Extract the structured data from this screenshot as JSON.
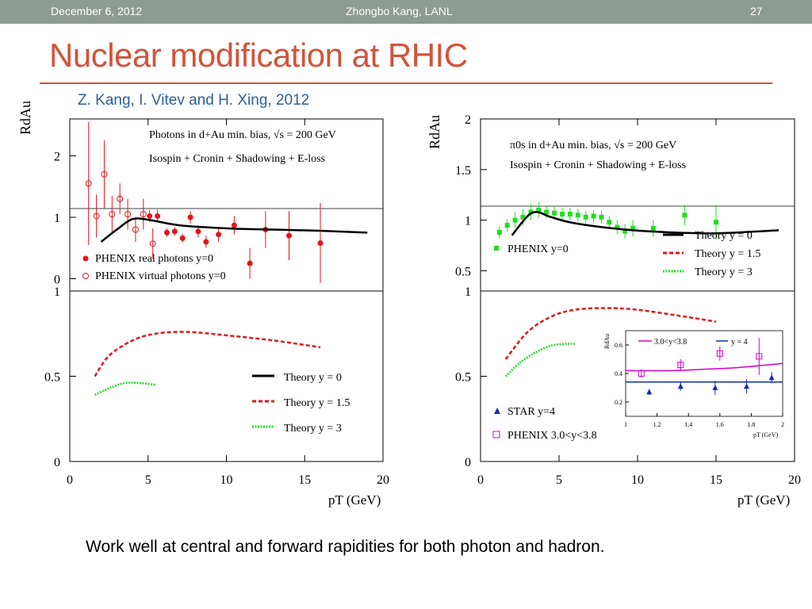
{
  "header": {
    "date": "December 6, 2012",
    "author": "Zhongbo Kang, LANL",
    "page": "27"
  },
  "slide": {
    "title": "Nuclear modification at RHIC",
    "citation": "Z. Kang, I. Vitev and H. Xing, 2012",
    "caption": "Work well at central and forward rapidities for both photon and hadron."
  },
  "colors": {
    "title": "#d0543a",
    "citation": "#2f5e93",
    "red": "#e0161b",
    "green": "#22dd22",
    "magenta": "#d000c8",
    "blue": "#0f2fb0"
  },
  "chart_data": [
    {
      "type": "scatter",
      "ylabel": "RdAu",
      "xlabel": "pT (GeV)",
      "xlim": [
        0,
        20
      ],
      "ylim_top": [
        -0.2,
        2.6
      ],
      "ylim_bottom": [
        0,
        1
      ],
      "x_ticks": [
        "0",
        "5",
        "10",
        "15",
        "20"
      ],
      "y_ticks_top": [
        "0",
        "1",
        "2"
      ],
      "y_ticks_bottom": [
        "0",
        "0.5",
        "1"
      ],
      "legend_top_title": [
        "Photons in d+Au min. bias, √s = 200 GeV",
        "Isospin + Cronin + Shadowing + E-loss"
      ],
      "legend_bottom": [
        "Theory y = 0",
        "Theory y = 1.5",
        "Theory y = 3"
      ],
      "series": [
        {
          "name": "PHENIX real photons y=0",
          "style": "filled",
          "points": [
            [
              5.1,
              1.02,
              0.1
            ],
            [
              5.6,
              1.02,
              0.1
            ],
            [
              6.2,
              0.75,
              0.07
            ],
            [
              6.7,
              0.77,
              0.07
            ],
            [
              7.2,
              0.66,
              0.07
            ],
            [
              7.7,
              1.0,
              0.1
            ],
            [
              8.2,
              0.77,
              0.1
            ],
            [
              8.7,
              0.6,
              0.1
            ],
            [
              9.5,
              0.72,
              0.12
            ],
            [
              10.5,
              0.87,
              0.15
            ],
            [
              11.5,
              0.25,
              0.25
            ],
            [
              12.5,
              0.8,
              0.3
            ],
            [
              14,
              0.7,
              0.4
            ],
            [
              16,
              0.58,
              0.65
            ]
          ]
        },
        {
          "name": "PHENIX virtual photons y=0",
          "style": "open",
          "points": [
            [
              1.2,
              1.55,
              1.0
            ],
            [
              1.7,
              1.02,
              0.35
            ],
            [
              2.2,
              1.7,
              0.55
            ],
            [
              2.7,
              1.05,
              0.3
            ],
            [
              3.2,
              1.3,
              0.25
            ],
            [
              3.7,
              1.05,
              0.25
            ],
            [
              4.2,
              0.8,
              0.2
            ],
            [
              4.7,
              1.05,
              0.25
            ],
            [
              5.3,
              0.57,
              0.25
            ]
          ]
        },
        {
          "name": "Theory y = 0",
          "curve": [
            [
              2,
              0.6
            ],
            [
              3,
              0.8
            ],
            [
              4,
              0.97
            ],
            [
              5,
              0.96
            ],
            [
              7,
              0.87
            ],
            [
              10,
              0.82
            ],
            [
              13,
              0.8
            ],
            [
              16,
              0.78
            ],
            [
              19,
              0.75
            ]
          ]
        },
        {
          "name": "Theory y = 1.5",
          "curve": [
            [
              1.6,
              0.5
            ],
            [
              2.5,
              0.62
            ],
            [
              4,
              0.71
            ],
            [
              5.5,
              0.75
            ],
            [
              7.5,
              0.76
            ],
            [
              10,
              0.74
            ],
            [
              13,
              0.71
            ],
            [
              16,
              0.67
            ]
          ]
        },
        {
          "name": "Theory y = 3",
          "curve": [
            [
              1.6,
              0.39
            ],
            [
              2.5,
              0.43
            ],
            [
              3.5,
              0.46
            ],
            [
              4.5,
              0.46
            ],
            [
              5.5,
              0.45
            ]
          ]
        }
      ]
    },
    {
      "type": "scatter",
      "ylabel": "RdAu",
      "xlabel": "pT (GeV)",
      "xlim": [
        0,
        20
      ],
      "ylim_top": [
        0.3,
        2
      ],
      "ylim_bottom": [
        0,
        1
      ],
      "x_ticks": [
        "0",
        "5",
        "10",
        "15",
        "20"
      ],
      "y_ticks_top": [
        "0.5",
        "1",
        "1.5",
        "2"
      ],
      "y_ticks_bottom": [
        "0",
        "0.5",
        "1"
      ],
      "legend_top_title": [
        "π0s in d+Au min. bias, √s = 200 GeV",
        "Isospin + Cronin + Shadowing + E-loss"
      ],
      "legend_top": [
        "Theory y = 0",
        "Theory y = 1.5",
        "Theory y = 3"
      ],
      "series": [
        {
          "name": "PHENIX y=0",
          "style": "square",
          "points": [
            [
              1.2,
              0.88,
              0.06
            ],
            [
              1.7,
              0.95,
              0.06
            ],
            [
              2.2,
              1.0,
              0.08
            ],
            [
              2.7,
              1.03,
              0.08
            ],
            [
              3.2,
              1.08,
              0.08
            ],
            [
              3.7,
              1.1,
              0.08
            ],
            [
              4.2,
              1.08,
              0.06
            ],
            [
              4.7,
              1.07,
              0.06
            ],
            [
              5.2,
              1.06,
              0.06
            ],
            [
              5.7,
              1.06,
              0.06
            ],
            [
              6.2,
              1.05,
              0.06
            ],
            [
              6.7,
              1.03,
              0.06
            ],
            [
              7.2,
              1.04,
              0.06
            ],
            [
              7.7,
              1.03,
              0.06
            ],
            [
              8.2,
              0.98,
              0.06
            ],
            [
              8.7,
              0.93,
              0.07
            ],
            [
              9.2,
              0.89,
              0.07
            ],
            [
              9.7,
              0.92,
              0.08
            ],
            [
              11,
              0.92,
              0.08
            ],
            [
              13,
              1.05,
              0.1
            ],
            [
              15,
              0.98,
              0.17
            ]
          ]
        },
        {
          "name": "Theory y = 0",
          "curve": [
            [
              2,
              0.85
            ],
            [
              3,
              1.04
            ],
            [
              3.6,
              1.08
            ],
            [
              4.5,
              1.03
            ],
            [
              6,
              0.97
            ],
            [
              9,
              0.91
            ],
            [
              12,
              0.88
            ],
            [
              15,
              0.87
            ],
            [
              19,
              0.9
            ]
          ]
        },
        {
          "name": "Theory y = 1.5",
          "curve": [
            [
              1.6,
              0.6
            ],
            [
              3,
              0.76
            ],
            [
              4.5,
              0.85
            ],
            [
              6,
              0.89
            ],
            [
              8,
              0.9
            ],
            [
              10,
              0.89
            ],
            [
              13,
              0.85
            ],
            [
              15,
              0.82
            ]
          ]
        },
        {
          "name": "Theory y = 3",
          "curve": [
            [
              1.6,
              0.5
            ],
            [
              2.5,
              0.58
            ],
            [
              3.5,
              0.64
            ],
            [
              4.5,
              0.68
            ],
            [
              5.5,
              0.69
            ],
            [
              6,
              0.69
            ]
          ]
        }
      ],
      "legend_bottom_left": [
        "STAR y=4",
        "PHENIX 3.0<y<3.8"
      ],
      "inset": {
        "xlim": [
          1,
          2
        ],
        "ylim": [
          0.1,
          0.7
        ],
        "x_ticks": [
          "1",
          "1.2",
          "1.4",
          "1.6",
          "1.8",
          "2"
        ],
        "y_ticks": [
          "0.2",
          "0.4",
          "0.6"
        ],
        "ylabel": "RdAu",
        "xlabel": "pT (GeV)",
        "legend": [
          "3.0<y<3.8",
          "y = 4"
        ],
        "series": [
          {
            "name": "3.0<y<3.8",
            "points": [
              [
                1.1,
                0.4,
                0.03
              ],
              [
                1.35,
                0.46,
                0.04
              ],
              [
                1.6,
                0.54,
                0.05
              ],
              [
                1.85,
                0.52,
                0.13
              ]
            ],
            "curve": [
              [
                1,
                0.42
              ],
              [
                1.3,
                0.42
              ],
              [
                1.5,
                0.43
              ],
              [
                1.7,
                0.44
              ],
              [
                2,
                0.47
              ]
            ]
          },
          {
            "name": "y = 4",
            "points": [
              [
                1.15,
                0.27,
                0.02
              ],
              [
                1.35,
                0.31,
                0.03
              ],
              [
                1.57,
                0.3,
                0.05
              ],
              [
                1.77,
                0.31,
                0.05
              ],
              [
                1.93,
                0.37,
                0.04
              ]
            ],
            "curve": [
              [
                1,
                0.34
              ],
              [
                1.3,
                0.34
              ],
              [
                1.6,
                0.34
              ],
              [
                2,
                0.34
              ]
            ]
          }
        ]
      }
    }
  ]
}
